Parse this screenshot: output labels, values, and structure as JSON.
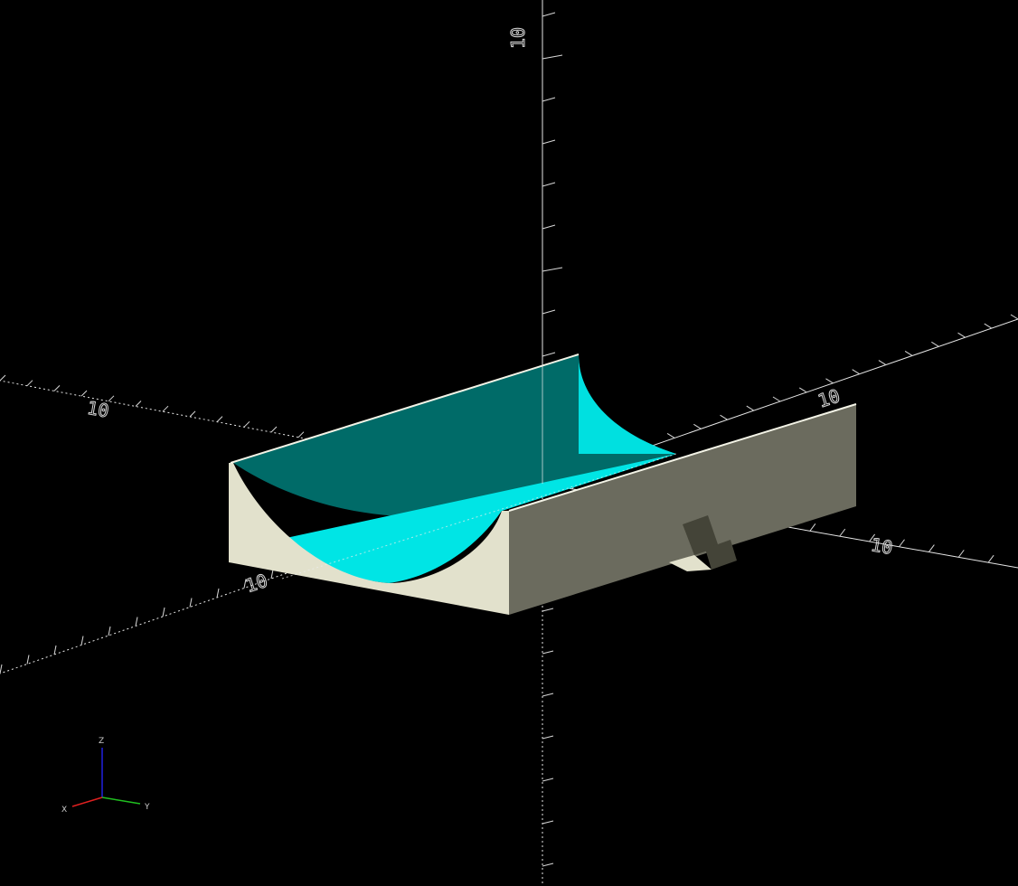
{
  "viewport": {
    "background": "#000000",
    "grid_color": "#e0e0e0",
    "model": {
      "face_light": "#e2e1cc",
      "face_dark": "#6b6b5e",
      "edge_color": "#f3f3e6",
      "highlight_cyan": "#00e5e5",
      "highlight_teal": "#006b68",
      "nub_color": "#444438"
    }
  },
  "scale_labels": {
    "z_positive": "10",
    "x_positive": "10",
    "y_positive": "10",
    "x_negative": "10",
    "y_negative": "10"
  },
  "axis_indicator": {
    "x_label": "X",
    "y_label": "Y",
    "z_label": "Z",
    "x_color": "#e02020",
    "y_color": "#20c020",
    "z_color": "#2020e0"
  }
}
